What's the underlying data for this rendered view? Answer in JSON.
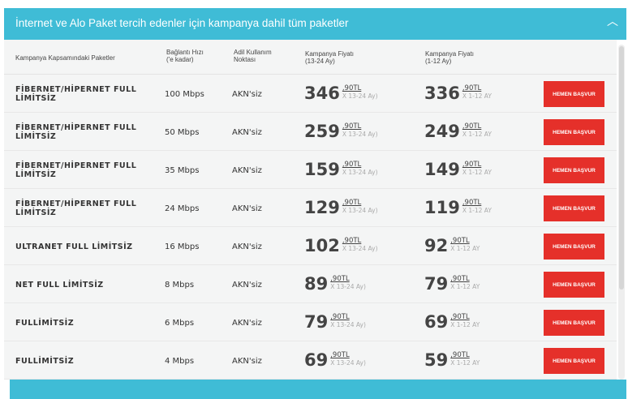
{
  "header": {
    "title": "İnternet ve Alo Paket tercih edenler için kampanya dahil tüm paketler",
    "collapse_icon": "chevron-up-icon"
  },
  "columns": {
    "package": "Kampanya Kapsamındaki Paketler",
    "speed": [
      "Bağlantı Hızı",
      "('e kadar)"
    ],
    "akn": [
      "Adil Kullanım",
      "Noktası"
    ],
    "price1": [
      "Kampanya Fiyatı",
      "(13-24 Ay)"
    ],
    "price2": [
      "Kampanya Fiyatı",
      "(1-12 Ay)"
    ]
  },
  "rows": [
    {
      "name": "FİBERNET/HİPERNET FULL LİMİTSİZ",
      "speed": "100 Mbps",
      "akn": "AKN'siz",
      "p1": "346",
      "p1dec": ",90TL",
      "p1per": "X 13-24 Ay)",
      "p2": "336",
      "p2dec": ",90TL",
      "p2per": "X 1-12 AY",
      "button": "HEMEN BAŞVUR"
    },
    {
      "name": "FİBERNET/HİPERNET FULL LİMİTSİZ",
      "speed": "50 Mbps",
      "akn": "AKN'siz",
      "p1": "259",
      "p1dec": ",90TL",
      "p1per": "X 13-24 Ay)",
      "p2": "249",
      "p2dec": ",90TL",
      "p2per": "X 1-12 AY",
      "button": "HEMEN BAŞVUR"
    },
    {
      "name": "FİBERNET/HİPERNET FULL LİMİTSİZ",
      "speed": "35 Mbps",
      "akn": "AKN'siz",
      "p1": "159",
      "p1dec": ",90TL",
      "p1per": "X 13-24 Ay)",
      "p2": "149",
      "p2dec": ",90TL",
      "p2per": "X 1-12 AY",
      "button": "HEMEN BAŞVUR"
    },
    {
      "name": "FİBERNET/HİPERNET FULL LİMİTSİZ",
      "speed": "24 Mbps",
      "akn": "AKN'siz",
      "p1": "129",
      "p1dec": ",90TL",
      "p1per": "X 13-24 Ay)",
      "p2": "119",
      "p2dec": ",90TL",
      "p2per": "X 1-12 AY",
      "button": "HEMEN BAŞVUR"
    },
    {
      "name": "ULTRANET FULL LİMİTSİZ",
      "speed": "16 Mbps",
      "akn": "AKN'siz",
      "p1": "102",
      "p1dec": ",90TL",
      "p1per": "X 13-24 Ay)",
      "p2": "92",
      "p2dec": ",90TL",
      "p2per": "X 1-12 AY",
      "button": "HEMEN BAŞVUR"
    },
    {
      "name": "NET FULL LİMİTSİZ",
      "speed": "8 Mbps",
      "akn": "AKN'siz",
      "p1": "89",
      "p1dec": ",90TL",
      "p1per": "X 13-24 Ay)",
      "p2": "79",
      "p2dec": ",90TL",
      "p2per": "X 1-12 AY",
      "button": "HEMEN BAŞVUR"
    },
    {
      "name": "FULLİMİTSİZ",
      "speed": "6 Mbps",
      "akn": "AKN'siz",
      "p1": "79",
      "p1dec": ",90TL",
      "p1per": "X 13-24 Ay)",
      "p2": "69",
      "p2dec": ",90TL",
      "p2per": "X 1-12 AY",
      "button": "HEMEN BAŞVUR"
    },
    {
      "name": "FULLİMİTSİZ",
      "speed": "4 Mbps",
      "akn": "AKN'siz",
      "p1": "69",
      "p1dec": ",90TL",
      "p1per": "X 13-24 Ay)",
      "p2": "59",
      "p2dec": ",90TL",
      "p2per": "X 1-12 AY",
      "button": "HEMEN BAŞVUR"
    }
  ],
  "colors": {
    "accent": "#3fbcd6",
    "button": "#e5302a",
    "panel": "#f4f5f5"
  }
}
